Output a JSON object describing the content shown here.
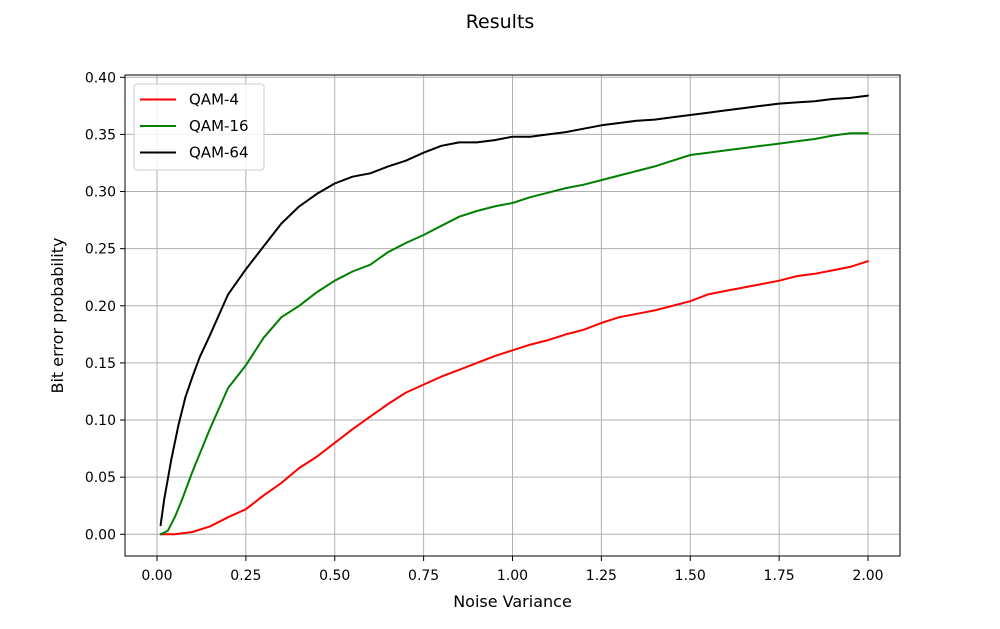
{
  "chart_data": {
    "type": "line",
    "title": "Results",
    "xlabel": "Noise Variance",
    "ylabel": "Bit error probability",
    "xlim": [
      -0.09,
      2.09
    ],
    "ylim": [
      -0.019,
      0.402
    ],
    "x_ticks": [
      0.0,
      0.25,
      0.5,
      0.75,
      1.0,
      1.25,
      1.5,
      1.75,
      2.0
    ],
    "x_tick_labels": [
      "0.00",
      "0.25",
      "0.50",
      "0.75",
      "1.00",
      "1.25",
      "1.50",
      "1.75",
      "2.00"
    ],
    "y_ticks": [
      0.0,
      0.05,
      0.1,
      0.15,
      0.2,
      0.25,
      0.3,
      0.35,
      0.4
    ],
    "y_tick_labels": [
      "0.00",
      "0.05",
      "0.10",
      "0.15",
      "0.20",
      "0.25",
      "0.30",
      "0.35",
      "0.40"
    ],
    "grid": true,
    "legend_position": "top-left",
    "series": [
      {
        "name": "QAM-4",
        "color": "#ff0000",
        "x": [
          0.01,
          0.05,
          0.1,
          0.15,
          0.2,
          0.25,
          0.3,
          0.35,
          0.4,
          0.45,
          0.5,
          0.55,
          0.6,
          0.65,
          0.7,
          0.75,
          0.8,
          0.85,
          0.9,
          0.95,
          1.0,
          1.05,
          1.1,
          1.15,
          1.2,
          1.25,
          1.3,
          1.35,
          1.4,
          1.45,
          1.5,
          1.55,
          1.6,
          1.65,
          1.7,
          1.75,
          1.8,
          1.85,
          1.9,
          1.95,
          2.0
        ],
        "y": [
          0.0,
          0.0,
          0.002,
          0.007,
          0.015,
          0.022,
          0.034,
          0.045,
          0.058,
          0.068,
          0.08,
          0.092,
          0.103,
          0.114,
          0.124,
          0.131,
          0.138,
          0.144,
          0.15,
          0.156,
          0.161,
          0.166,
          0.17,
          0.175,
          0.179,
          0.185,
          0.19,
          0.193,
          0.196,
          0.2,
          0.204,
          0.21,
          0.213,
          0.216,
          0.219,
          0.222,
          0.226,
          0.228,
          0.231,
          0.234,
          0.239
        ]
      },
      {
        "name": "QAM-16",
        "color": "#008000",
        "x": [
          0.01,
          0.03,
          0.05,
          0.07,
          0.1,
          0.15,
          0.2,
          0.25,
          0.3,
          0.35,
          0.4,
          0.45,
          0.5,
          0.55,
          0.6,
          0.65,
          0.7,
          0.75,
          0.8,
          0.85,
          0.9,
          0.95,
          1.0,
          1.05,
          1.1,
          1.15,
          1.2,
          1.25,
          1.3,
          1.35,
          1.4,
          1.45,
          1.5,
          1.55,
          1.6,
          1.65,
          1.7,
          1.75,
          1.8,
          1.85,
          1.9,
          1.95,
          2.0
        ],
        "y": [
          0.0,
          0.003,
          0.015,
          0.03,
          0.055,
          0.093,
          0.128,
          0.148,
          0.172,
          0.19,
          0.2,
          0.212,
          0.222,
          0.23,
          0.236,
          0.247,
          0.255,
          0.262,
          0.27,
          0.278,
          0.283,
          0.287,
          0.29,
          0.295,
          0.299,
          0.303,
          0.306,
          0.31,
          0.314,
          0.318,
          0.322,
          0.327,
          0.332,
          0.334,
          0.336,
          0.338,
          0.34,
          0.342,
          0.344,
          0.346,
          0.349,
          0.351,
          0.351
        ]
      },
      {
        "name": "QAM-64",
        "color": "#000000",
        "x": [
          0.01,
          0.02,
          0.04,
          0.06,
          0.08,
          0.1,
          0.12,
          0.15,
          0.2,
          0.25,
          0.3,
          0.35,
          0.4,
          0.45,
          0.5,
          0.55,
          0.6,
          0.65,
          0.7,
          0.75,
          0.8,
          0.85,
          0.9,
          0.95,
          1.0,
          1.05,
          1.1,
          1.15,
          1.2,
          1.25,
          1.3,
          1.35,
          1.4,
          1.45,
          1.5,
          1.55,
          1.6,
          1.65,
          1.7,
          1.75,
          1.8,
          1.85,
          1.9,
          1.95,
          2.0
        ],
        "y": [
          0.008,
          0.03,
          0.065,
          0.095,
          0.12,
          0.138,
          0.155,
          0.175,
          0.21,
          0.232,
          0.252,
          0.272,
          0.287,
          0.298,
          0.307,
          0.313,
          0.316,
          0.322,
          0.327,
          0.334,
          0.34,
          0.343,
          0.343,
          0.345,
          0.348,
          0.348,
          0.35,
          0.352,
          0.355,
          0.358,
          0.36,
          0.362,
          0.363,
          0.365,
          0.367,
          0.369,
          0.371,
          0.373,
          0.375,
          0.377,
          0.378,
          0.379,
          0.381,
          0.382,
          0.384
        ]
      }
    ]
  }
}
